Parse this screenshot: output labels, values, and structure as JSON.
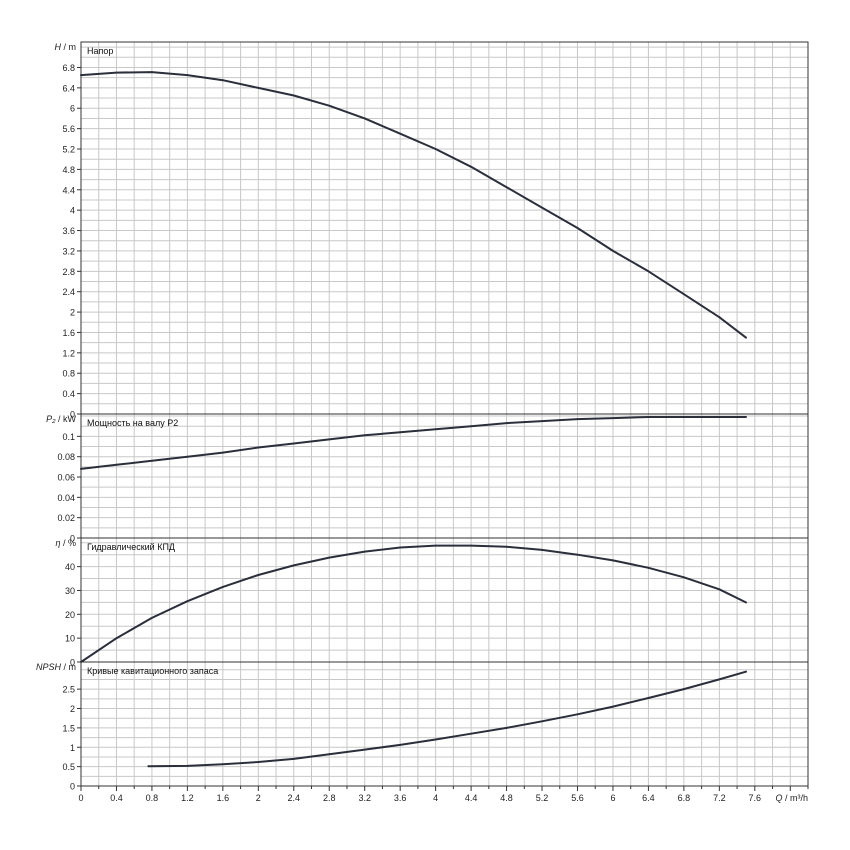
{
  "chart_data": [
    {
      "type": "line",
      "title": "Напор",
      "ylabel_sym": "H",
      "ylabel_unit": " / m",
      "xlabel_sym": "Q",
      "xlabel_unit": " / m³/h",
      "xlim": [
        0,
        8.2
      ],
      "ylim": [
        0,
        7.3
      ],
      "yticks": [
        "0",
        "0.4",
        "0.8",
        "1.2",
        "1.6",
        "2",
        "2.4",
        "2.8",
        "3.2",
        "3.6",
        "4",
        "4.4",
        "4.8",
        "5.2",
        "5.6",
        "6",
        "6.4",
        "6.8"
      ],
      "series": [
        {
          "x": [
            0,
            0.4,
            0.8,
            1.2,
            1.6,
            2.0,
            2.4,
            2.8,
            3.2,
            3.6,
            4.0,
            4.4,
            4.8,
            5.2,
            5.6,
            6.0,
            6.4,
            6.8,
            7.2,
            7.5
          ],
          "y": [
            6.65,
            6.7,
            6.71,
            6.65,
            6.55,
            6.4,
            6.25,
            6.05,
            5.8,
            5.5,
            5.2,
            4.85,
            4.45,
            4.05,
            3.65,
            3.2,
            2.8,
            2.35,
            1.9,
            1.5
          ]
        }
      ]
    },
    {
      "type": "line",
      "title": "Мощность на валу P2",
      "ylabel_sym": "P₂",
      "ylabel_unit": " / kW",
      "xlim": [
        0,
        8.2
      ],
      "ylim": [
        0,
        0.122
      ],
      "yticks": [
        "0",
        "0.02",
        "0.04",
        "0.06",
        "0.08",
        "0.1"
      ],
      "series": [
        {
          "x": [
            0,
            0.4,
            0.8,
            1.2,
            1.6,
            2.0,
            2.4,
            2.8,
            3.2,
            3.6,
            4.0,
            4.4,
            4.8,
            5.2,
            5.6,
            6.0,
            6.4,
            6.8,
            7.2,
            7.5
          ],
          "y": [
            0.068,
            0.072,
            0.076,
            0.08,
            0.084,
            0.089,
            0.093,
            0.097,
            0.101,
            0.104,
            0.107,
            0.11,
            0.113,
            0.115,
            0.117,
            0.118,
            0.119,
            0.119,
            0.119,
            0.119
          ]
        }
      ]
    },
    {
      "type": "line",
      "title": "Гидравлический КПД",
      "ylabel_sym": "η",
      "ylabel_unit": " / %",
      "xlim": [
        0,
        8.2
      ],
      "ylim": [
        0,
        52
      ],
      "yticks": [
        "0",
        "10",
        "20",
        "30",
        "40"
      ],
      "series": [
        {
          "x": [
            0,
            0.4,
            0.8,
            1.2,
            1.6,
            2.0,
            2.4,
            2.8,
            3.2,
            3.6,
            4.0,
            4.4,
            4.8,
            5.2,
            5.6,
            6.0,
            6.4,
            6.8,
            7.2,
            7.5
          ],
          "y": [
            0,
            10,
            18.5,
            25.5,
            31.5,
            36.5,
            40.5,
            43.8,
            46.3,
            48,
            48.8,
            48.8,
            48.3,
            47,
            45,
            42.6,
            39.5,
            35.5,
            30.5,
            25
          ]
        }
      ]
    },
    {
      "type": "line",
      "title": "Кривые кавитационного запаса",
      "ylabel_sym": "NPSH",
      "ylabel_unit": " / m",
      "xlim": [
        0,
        8.2
      ],
      "ylim": [
        0,
        3.2
      ],
      "yticks": [
        "0",
        "0.5",
        "1",
        "1.5",
        "2",
        "2.5"
      ],
      "xticks": [
        "0",
        "0.4",
        "0.8",
        "1.2",
        "1.6",
        "2",
        "2.4",
        "2.8",
        "3.2",
        "3.6",
        "4",
        "4.4",
        "4.8",
        "5.2",
        "5.6",
        "6",
        "6.4",
        "6.8",
        "7.2",
        "7.6"
      ],
      "series": [
        {
          "x": [
            0.76,
            1.2,
            1.6,
            2.0,
            2.4,
            2.8,
            3.2,
            3.6,
            4.0,
            4.4,
            4.8,
            5.2,
            5.6,
            6.0,
            6.4,
            6.8,
            7.2,
            7.5
          ],
          "y": [
            0.51,
            0.52,
            0.56,
            0.62,
            0.7,
            0.82,
            0.94,
            1.06,
            1.2,
            1.35,
            1.5,
            1.67,
            1.85,
            2.05,
            2.27,
            2.5,
            2.75,
            2.95
          ]
        }
      ]
    }
  ]
}
